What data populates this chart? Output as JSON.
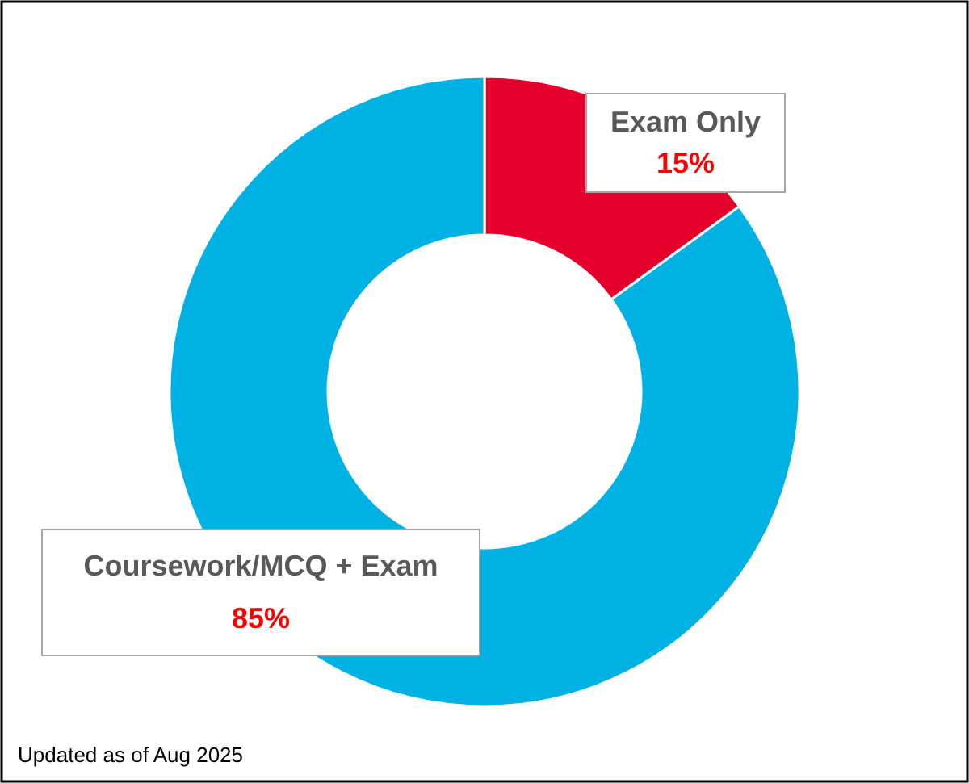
{
  "chart_data": {
    "type": "donut",
    "categories": [
      "Exam Only",
      "Coursework/MCQ + Exam"
    ],
    "values": [
      15,
      85
    ],
    "colors": [
      "#e4002b",
      "#00b2e3"
    ],
    "value_labels": [
      "15%",
      "85%"
    ],
    "annotations": [
      "Updated as of Aug 2025"
    ]
  }
}
